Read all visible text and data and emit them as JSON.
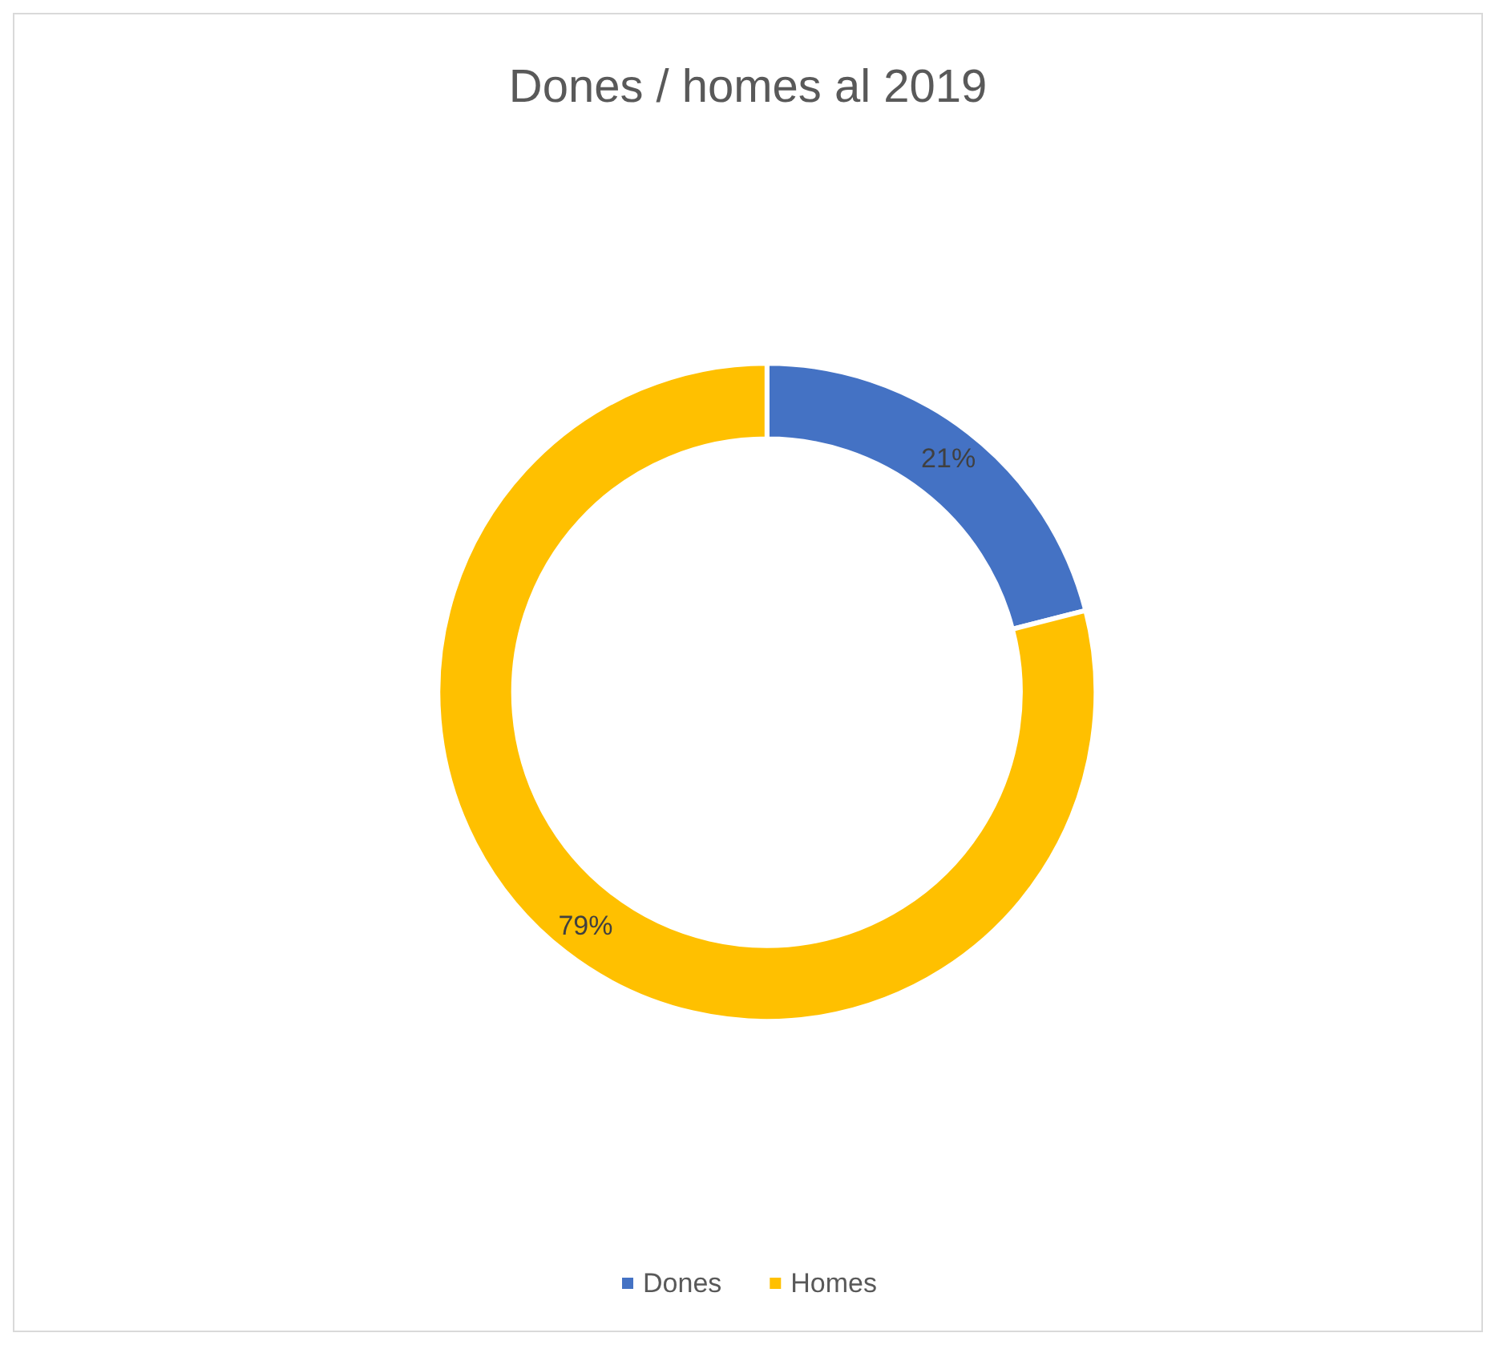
{
  "chart_data": {
    "type": "donut",
    "title": "Dones / homes al 2019",
    "categories": [
      "Dones",
      "Homes"
    ],
    "values": [
      21,
      79
    ],
    "colors": [
      "#4472c4",
      "#ffc000"
    ],
    "value_labels": [
      "21%",
      "79%"
    ],
    "legend": "bottom"
  }
}
